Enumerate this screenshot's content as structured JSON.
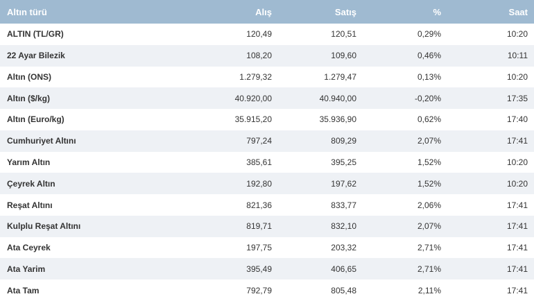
{
  "header": {
    "columns": [
      "Altın türü",
      "Alış",
      "Satış",
      "%",
      "Saat"
    ]
  },
  "table": {
    "rows": [
      [
        "ALTIN (TL/GR)",
        "120,49",
        "120,51",
        "0,29%",
        "10:20"
      ],
      [
        "22 Ayar Bilezik",
        "108,20",
        "109,60",
        "0,46%",
        "10:11"
      ],
      [
        "Altın (ONS)",
        "1.279,32",
        "1.279,47",
        "0,13%",
        "10:20"
      ],
      [
        "Altın ($/kg)",
        "40.920,00",
        "40.940,00",
        "-0,20%",
        "17:35"
      ],
      [
        "Altın (Euro/kg)",
        "35.915,20",
        "35.936,90",
        "0,62%",
        "17:40"
      ],
      [
        "Cumhuriyet Altını",
        "797,24",
        "809,29",
        "2,07%",
        "17:41"
      ],
      [
        "Yarım Altın",
        "385,61",
        "395,25",
        "1,52%",
        "10:20"
      ],
      [
        "Çeyrek Altın",
        "192,80",
        "197,62",
        "1,52%",
        "10:20"
      ],
      [
        "Reşat Altını",
        "821,36",
        "833,77",
        "2,06%",
        "17:41"
      ],
      [
        "Kulplu Reşat Altını",
        "819,71",
        "832,10",
        "2,07%",
        "17:41"
      ],
      [
        "Ata Ceyrek",
        "197,75",
        "203,32",
        "2,71%",
        "17:41"
      ],
      [
        "Ata Yarim",
        "395,49",
        "406,65",
        "2,71%",
        "17:41"
      ],
      [
        "Ata Tam",
        "792,79",
        "805,48",
        "2,11%",
        "17:41"
      ]
    ]
  }
}
